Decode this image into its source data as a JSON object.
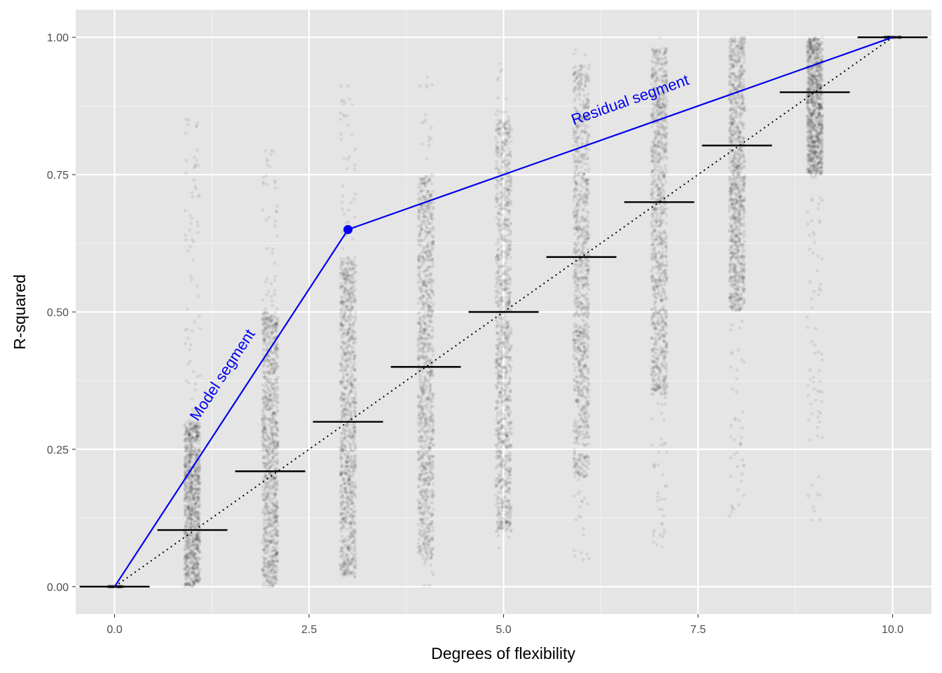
{
  "chart_data": {
    "type": "scatter",
    "title": "",
    "xlabel": "Degrees of flexibility",
    "ylabel": "R-squared",
    "xlim": [
      -0.5,
      10.5
    ],
    "ylim": [
      -0.05,
      1.05
    ],
    "x_ticks": [
      0.0,
      2.5,
      5.0,
      7.5,
      10.0
    ],
    "x_tick_labels": [
      "0.0",
      "2.5",
      "5.0",
      "7.5",
      "10.0"
    ],
    "y_ticks": [
      0.0,
      0.25,
      0.5,
      0.75,
      1.0
    ],
    "y_tick_labels": [
      "0.00",
      "0.25",
      "0.50",
      "0.75",
      "1.00"
    ],
    "grid": true,
    "background": "#e5e5e5",
    "jitter_columns": [
      {
        "x": 0,
        "min": 0.0,
        "max": 0.0,
        "dense_low": 0.0,
        "dense_high": 0.0,
        "mean": 0.0
      },
      {
        "x": 1,
        "min": 0.0,
        "max": 0.86,
        "dense_low": 0.0,
        "dense_high": 0.3,
        "mean": 0.103
      },
      {
        "x": 2,
        "min": 0.0,
        "max": 0.8,
        "dense_low": 0.0,
        "dense_high": 0.5,
        "mean": 0.21
      },
      {
        "x": 3,
        "min": 0.01,
        "max": 0.92,
        "dense_low": 0.02,
        "dense_high": 0.6,
        "mean": 0.3
      },
      {
        "x": 4,
        "min": 0.0,
        "max": 0.93,
        "dense_low": 0.05,
        "dense_high": 0.75,
        "mean": 0.4
      },
      {
        "x": 5,
        "min": 0.05,
        "max": 0.96,
        "dense_low": 0.1,
        "dense_high": 0.85,
        "mean": 0.5
      },
      {
        "x": 6,
        "min": 0.04,
        "max": 0.98,
        "dense_low": 0.2,
        "dense_high": 0.95,
        "mean": 0.6
      },
      {
        "x": 7,
        "min": 0.07,
        "max": 1.0,
        "dense_low": 0.35,
        "dense_high": 0.98,
        "mean": 0.7
      },
      {
        "x": 8,
        "min": 0.12,
        "max": 1.0,
        "dense_low": 0.5,
        "dense_high": 1.0,
        "mean": 0.803
      },
      {
        "x": 9,
        "min": 0.12,
        "max": 1.0,
        "dense_low": 0.75,
        "dense_high": 1.0,
        "mean": 0.9
      },
      {
        "x": 10,
        "min": 1.0,
        "max": 1.0,
        "dense_low": 1.0,
        "dense_high": 1.0,
        "mean": 1.0
      }
    ],
    "reference_line": {
      "style": "dotted",
      "color": "#000000",
      "x": [
        0,
        10
      ],
      "y": [
        0,
        1
      ]
    },
    "highlight_path": {
      "color": "#0000ee",
      "x": [
        0,
        3,
        10
      ],
      "y": [
        0,
        0.65,
        1.0
      ],
      "point": {
        "x": 3,
        "y": 0.65
      }
    },
    "annotations": [
      {
        "text": "Model segment",
        "x": 1.07,
        "y": 0.3,
        "color": "#0000ee"
      },
      {
        "text": "Residual segment",
        "x": 5.9,
        "y": 0.84,
        "color": "#0000ee"
      }
    ]
  }
}
